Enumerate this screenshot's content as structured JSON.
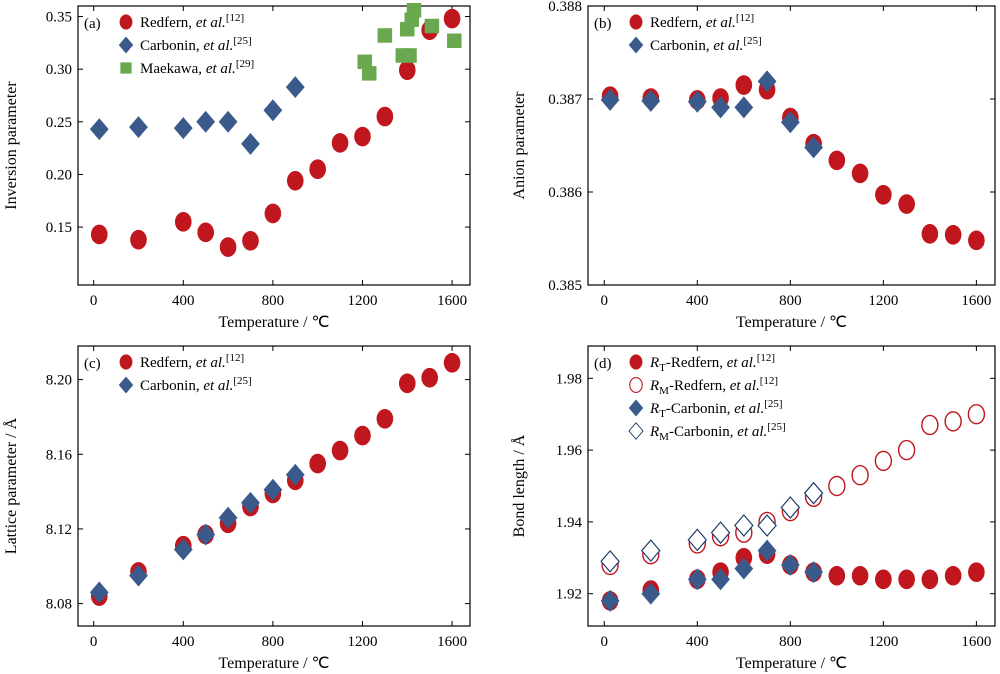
{
  "colors": {
    "redfern": "#c0161d",
    "carbonin": "#3a5a8c",
    "maekawa": "#6aa84f"
  },
  "chart_data": [
    {
      "panel": "(a)",
      "type": "scatter",
      "xlabel": "Temperature / ℃",
      "ylabel": "Inversion parameter",
      "xlim": [
        -70,
        1680
      ],
      "ylim": [
        0.095,
        0.36
      ],
      "xticks": [
        0,
        400,
        800,
        1200,
        1600
      ],
      "yticks": [
        0.15,
        0.2,
        0.25,
        0.3,
        0.35
      ],
      "ytick_decimals": 2,
      "legend_position": "top-left",
      "series": [
        {
          "name": "Redfern, et al.",
          "ref": "[12]",
          "marker": "circle",
          "filled": true,
          "color_key": "redfern",
          "x": [
            25,
            200,
            400,
            500,
            600,
            700,
            800,
            900,
            1000,
            1100,
            1200,
            1300,
            1400,
            1500,
            1600
          ],
          "y": [
            0.143,
            0.138,
            0.155,
            0.145,
            0.131,
            0.137,
            0.163,
            0.194,
            0.205,
            0.23,
            0.236,
            0.255,
            0.299,
            0.337,
            0.348
          ]
        },
        {
          "name": "Carbonin, et al.",
          "ref": "[25]",
          "marker": "diamond",
          "filled": true,
          "color_key": "carbonin",
          "x": [
            25,
            200,
            400,
            500,
            600,
            700,
            800,
            900
          ],
          "y": [
            0.243,
            0.245,
            0.244,
            0.25,
            0.25,
            0.229,
            0.261,
            0.283
          ]
        },
        {
          "name": "Maekawa, et al.",
          "ref": "[29]",
          "marker": "square",
          "filled": true,
          "color_key": "maekawa",
          "x": [
            1210,
            1230,
            1300,
            1380,
            1400,
            1410,
            1420,
            1430,
            1510,
            1610
          ],
          "y": [
            0.307,
            0.296,
            0.332,
            0.313,
            0.338,
            0.313,
            0.347,
            0.356,
            0.341,
            0.327
          ]
        }
      ]
    },
    {
      "panel": "(b)",
      "type": "scatter",
      "xlabel": "Temperature / ℃",
      "ylabel": "Anion parameter",
      "xlim": [
        -70,
        1680
      ],
      "ylim": [
        0.385,
        0.388
      ],
      "xticks": [
        0,
        400,
        800,
        1200,
        1600
      ],
      "yticks": [
        0.385,
        0.386,
        0.387,
        0.388
      ],
      "ytick_decimals": 3,
      "legend_position": "top-left",
      "series": [
        {
          "name": "Redfern, et al.",
          "ref": "[12]",
          "marker": "circle",
          "filled": true,
          "color_key": "redfern",
          "x": [
            25,
            200,
            400,
            500,
            600,
            700,
            800,
            900,
            1000,
            1100,
            1200,
            1300,
            1400,
            1500,
            1600
          ],
          "y": [
            0.38703,
            0.38701,
            0.38699,
            0.38701,
            0.38715,
            0.3871,
            0.3868,
            0.38652,
            0.38634,
            0.3862,
            0.38597,
            0.38587,
            0.38555,
            0.38554,
            0.38548
          ]
        },
        {
          "name": "Carbonin, et al.",
          "ref": "[25]",
          "marker": "diamond",
          "filled": true,
          "color_key": "carbonin",
          "x": [
            25,
            200,
            400,
            500,
            600,
            700,
            800,
            900
          ],
          "y": [
            0.38699,
            0.38698,
            0.38697,
            0.38691,
            0.38691,
            0.38719,
            0.38675,
            0.38648
          ]
        }
      ]
    },
    {
      "panel": "(c)",
      "type": "scatter",
      "xlabel": "Temperature / ℃",
      "ylabel": "Lattice parameter / Å",
      "xlim": [
        -70,
        1680
      ],
      "ylim": [
        8.068,
        8.218
      ],
      "xticks": [
        0,
        400,
        800,
        1200,
        1600
      ],
      "yticks": [
        8.08,
        8.12,
        8.16,
        8.2
      ],
      "ytick_decimals": 2,
      "legend_position": "top-left",
      "series": [
        {
          "name": "Redfern, et al.",
          "ref": "[12]",
          "marker": "circle",
          "filled": true,
          "color_key": "redfern",
          "x": [
            25,
            200,
            400,
            500,
            600,
            700,
            800,
            900,
            1000,
            1100,
            1200,
            1300,
            1400,
            1500,
            1600
          ],
          "y": [
            8.084,
            8.097,
            8.111,
            8.117,
            8.123,
            8.132,
            8.139,
            8.146,
            8.155,
            8.162,
            8.17,
            8.179,
            8.198,
            8.201,
            8.209
          ]
        },
        {
          "name": "Carbonin, et al.",
          "ref": "[25]",
          "marker": "diamond",
          "filled": true,
          "color_key": "carbonin",
          "x": [
            25,
            200,
            400,
            500,
            600,
            700,
            800,
            900
          ],
          "y": [
            8.086,
            8.095,
            8.109,
            8.117,
            8.126,
            8.134,
            8.141,
            8.149
          ]
        }
      ]
    },
    {
      "panel": "(d)",
      "type": "scatter",
      "xlabel": "Temperature / ℃",
      "ylabel": "Bond length / Å",
      "xlim": [
        -70,
        1680
      ],
      "ylim": [
        1.911,
        1.989
      ],
      "xticks": [
        0,
        400,
        800,
        1200,
        1600
      ],
      "yticks": [
        1.92,
        1.94,
        1.96,
        1.98
      ],
      "ytick_decimals": 2,
      "legend_position": "top-left",
      "series": [
        {
          "name": "R_T-Redfern, et al.",
          "label_sym": "R",
          "label_sub": "T",
          "label_rest": "-Redfern, ",
          "ref": "[12]",
          "marker": "circle",
          "filled": true,
          "color_key": "redfern",
          "x": [
            25,
            200,
            400,
            500,
            600,
            700,
            800,
            900,
            1000,
            1100,
            1200,
            1300,
            1400,
            1500,
            1600
          ],
          "y": [
            1.918,
            1.921,
            1.924,
            1.926,
            1.93,
            1.931,
            1.928,
            1.926,
            1.925,
            1.925,
            1.924,
            1.924,
            1.924,
            1.925,
            1.926
          ]
        },
        {
          "name": "R_M-Redfern, et al.",
          "label_sym": "R",
          "label_sub": "M",
          "label_rest": "-Redfern, ",
          "ref": "[12]",
          "marker": "circle",
          "filled": false,
          "color_key": "redfern",
          "x": [
            25,
            200,
            400,
            500,
            600,
            700,
            800,
            900,
            1000,
            1100,
            1200,
            1300,
            1400,
            1500,
            1600
          ],
          "y": [
            1.928,
            1.931,
            1.934,
            1.936,
            1.937,
            1.94,
            1.943,
            1.947,
            1.95,
            1.953,
            1.957,
            1.96,
            1.967,
            1.968,
            1.97
          ]
        },
        {
          "name": "R_T-Carbonin, et al.",
          "label_sym": "R",
          "label_sub": "T",
          "label_rest": "-Carbonin, ",
          "ref": "[25]",
          "marker": "diamond",
          "filled": true,
          "color_key": "carbonin",
          "x": [
            25,
            200,
            400,
            500,
            600,
            700,
            800,
            900
          ],
          "y": [
            1.918,
            1.92,
            1.924,
            1.924,
            1.927,
            1.932,
            1.928,
            1.926
          ]
        },
        {
          "name": "R_M-Carbonin, et al.",
          "label_sym": "R",
          "label_sub": "M",
          "label_rest": "-Carbonin, ",
          "ref": "[25]",
          "marker": "diamond",
          "filled": false,
          "color_key": "carbonin",
          "x": [
            25,
            200,
            400,
            500,
            600,
            700,
            800,
            900
          ],
          "y": [
            1.929,
            1.932,
            1.935,
            1.937,
            1.939,
            1.939,
            1.944,
            1.948
          ]
        }
      ]
    }
  ]
}
